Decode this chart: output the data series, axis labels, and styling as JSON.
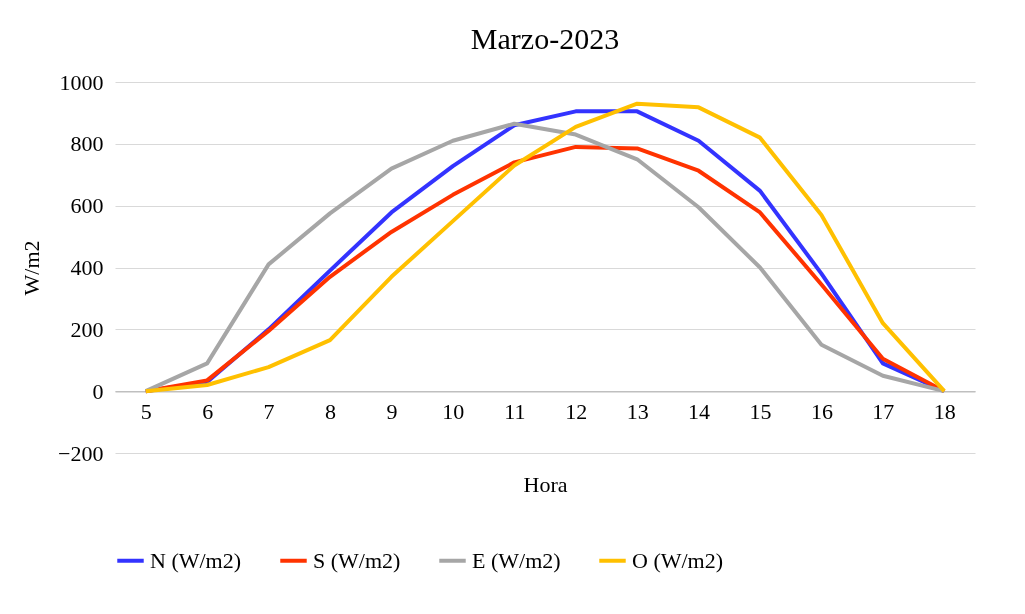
{
  "chart_data": {
    "type": "line",
    "title": "Marzo-2023",
    "xlabel": "Hora",
    "ylabel": "W/m2",
    "categories": [
      "5",
      "6",
      "7",
      "8",
      "9",
      "10",
      "11",
      "12",
      "13",
      "14",
      "15",
      "16",
      "17",
      "18"
    ],
    "series": [
      {
        "name": "N (W/m2)",
        "color": "#3333ff",
        "values": [
          0,
          30,
          200,
          390,
          578,
          728,
          860,
          905,
          905,
          810,
          648,
          380,
          90,
          0
        ]
      },
      {
        "name": "S (W/m2)",
        "color": "#ff3300",
        "values": [
          0,
          35,
          195,
          370,
          515,
          635,
          740,
          790,
          785,
          713,
          578,
          345,
          105,
          0
        ]
      },
      {
        "name": "E (W/m2)",
        "color": "#a6a6a6",
        "values": [
          0,
          90,
          410,
          575,
          720,
          810,
          865,
          830,
          750,
          595,
          400,
          150,
          50,
          0
        ]
      },
      {
        "name": "O (W/m2)",
        "color": "#ffc000",
        "values": [
          0,
          20,
          78,
          165,
          370,
          550,
          730,
          855,
          930,
          918,
          820,
          570,
          220,
          0
        ]
      }
    ],
    "ylim": [
      -200,
      1000
    ],
    "yticks": [
      -200,
      0,
      200,
      400,
      600,
      800,
      1000
    ],
    "grid": "y",
    "legend": "bottom",
    "marker": "none",
    "line_style": "solid"
  }
}
